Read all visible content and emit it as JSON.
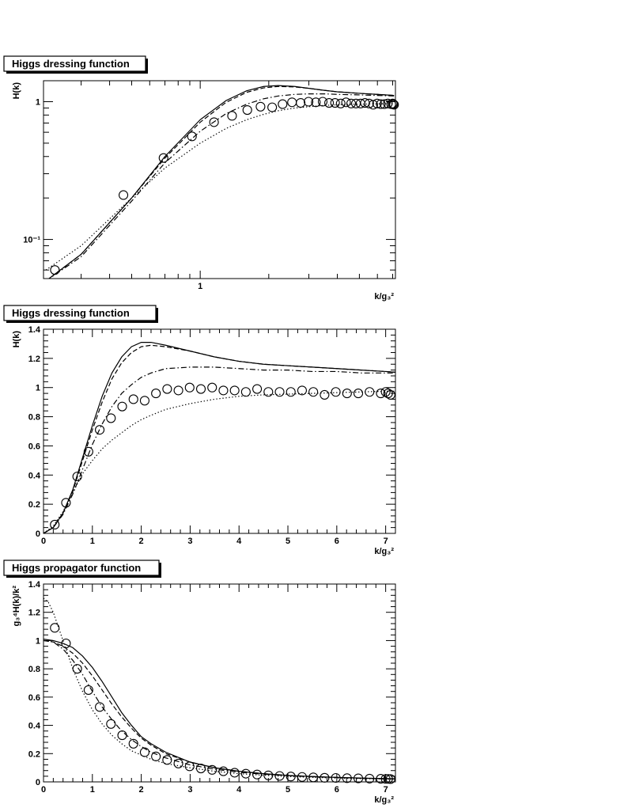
{
  "chart_data": [
    {
      "type": "line",
      "title": "Higgs dressing function",
      "ylabel": "H(k)",
      "xlabel": "k/g₃²",
      "x_scale": "log",
      "y_scale": "log",
      "xlim": [
        0.205,
        7.2
      ],
      "ylim": [
        0.052,
        1.42
      ],
      "x_ticks": [
        {
          "value": 1,
          "label": "1"
        }
      ],
      "y_ticks": [
        {
          "value": 0.1,
          "label": "10⁻¹"
        },
        {
          "value": 1,
          "label": "1"
        }
      ],
      "series": [
        {
          "style": "solid",
          "x": [
            0.21,
            0.3,
            0.5,
            0.7,
            1.0,
            1.3,
            1.6,
            1.9,
            2.2,
            2.6,
            3,
            3.5,
            4,
            5,
            6,
            7.1
          ],
          "y": [
            0.05,
            0.078,
            0.2,
            0.4,
            0.74,
            1.02,
            1.2,
            1.29,
            1.31,
            1.29,
            1.25,
            1.21,
            1.18,
            1.15,
            1.13,
            1.11
          ]
        },
        {
          "style": "dashed",
          "x": [
            0.21,
            0.3,
            0.5,
            0.7,
            1.0,
            1.3,
            1.6,
            1.9,
            2.2,
            2.6,
            3,
            3.5,
            4,
            5,
            6,
            7.1
          ],
          "y": [
            0.05,
            0.078,
            0.2,
            0.39,
            0.71,
            0.99,
            1.17,
            1.26,
            1.29,
            1.28,
            1.25,
            1.21,
            1.18,
            1.15,
            1.13,
            1.11
          ]
        },
        {
          "style": "dashdot",
          "x": [
            0.21,
            0.3,
            0.5,
            0.7,
            1.0,
            1.3,
            1.6,
            1.9,
            2.2,
            2.6,
            3,
            3.5,
            4,
            5,
            6,
            7.1
          ],
          "y": [
            0.05,
            0.075,
            0.19,
            0.36,
            0.61,
            0.82,
            0.96,
            1.05,
            1.1,
            1.13,
            1.14,
            1.14,
            1.13,
            1.12,
            1.11,
            1.1
          ]
        },
        {
          "style": "dotted",
          "x": [
            0.21,
            0.3,
            0.5,
            0.7,
            1.0,
            1.3,
            1.6,
            1.9,
            2.2,
            2.6,
            3,
            3.5,
            4,
            5,
            6,
            7.1
          ],
          "y": [
            0.06,
            0.09,
            0.2,
            0.33,
            0.5,
            0.64,
            0.74,
            0.81,
            0.86,
            0.9,
            0.92,
            0.94,
            0.95,
            0.96,
            0.965,
            0.97
          ]
        },
        {
          "style": "markers",
          "x": [
            0.23,
            0.46,
            0.69,
            0.92,
            1.15,
            1.38,
            1.61,
            1.84,
            2.07,
            2.3,
            2.53,
            2.76,
            2.99,
            3.22,
            3.45,
            3.68,
            3.91,
            4.14,
            4.37,
            4.6,
            4.83,
            5.06,
            5.29,
            5.52,
            5.75,
            5.98,
            6.21,
            6.44,
            6.67,
            6.9,
            7.0,
            7.05,
            7.1
          ],
          "y": [
            0.06,
            0.21,
            0.39,
            0.56,
            0.71,
            0.79,
            0.87,
            0.92,
            0.91,
            0.96,
            0.99,
            0.98,
            1.0,
            0.99,
            1.0,
            0.98,
            0.98,
            0.97,
            0.99,
            0.97,
            0.97,
            0.97,
            0.98,
            0.97,
            0.95,
            0.97,
            0.96,
            0.96,
            0.97,
            0.96,
            0.97,
            0.96,
            0.95
          ]
        }
      ]
    },
    {
      "type": "line",
      "title": "Higgs dressing function",
      "ylabel": "H(k)",
      "xlabel": "k/g₃²",
      "xlim": [
        0,
        7.2
      ],
      "ylim": [
        0,
        1.4
      ],
      "x_ticks": [
        {
          "value": 0,
          "label": "0"
        },
        {
          "value": 1,
          "label": "1"
        },
        {
          "value": 2,
          "label": "2"
        },
        {
          "value": 3,
          "label": "3"
        },
        {
          "value": 4,
          "label": "4"
        },
        {
          "value": 5,
          "label": "5"
        },
        {
          "value": 6,
          "label": "6"
        },
        {
          "value": 7,
          "label": "7"
        }
      ],
      "y_ticks": [
        {
          "value": 0,
          "label": "0"
        },
        {
          "value": 0.2,
          "label": "0.2"
        },
        {
          "value": 0.4,
          "label": "0.4"
        },
        {
          "value": 0.6,
          "label": "0.6"
        },
        {
          "value": 0.8,
          "label": "0.8"
        },
        {
          "value": 1,
          "label": "1"
        },
        {
          "value": 1.2,
          "label": "1.2"
        },
        {
          "value": 1.4,
          "label": "1.4"
        }
      ],
      "series": [
        {
          "style": "solid",
          "x": [
            0,
            0.2,
            0.4,
            0.6,
            0.8,
            1.0,
            1.2,
            1.4,
            1.6,
            1.8,
            2.0,
            2.2,
            2.5,
            3,
            3.5,
            4,
            4.5,
            5,
            5.5,
            6,
            6.5,
            7,
            7.2
          ],
          "y": [
            0,
            0.04,
            0.14,
            0.3,
            0.52,
            0.74,
            0.94,
            1.1,
            1.21,
            1.28,
            1.31,
            1.31,
            1.29,
            1.25,
            1.21,
            1.18,
            1.16,
            1.15,
            1.14,
            1.13,
            1.12,
            1.11,
            1.105
          ]
        },
        {
          "style": "dashed",
          "x": [
            0,
            0.2,
            0.4,
            0.6,
            0.8,
            1.0,
            1.2,
            1.4,
            1.6,
            1.8,
            2.0,
            2.2,
            2.5,
            3,
            3.5,
            4,
            4.5,
            5,
            5.5,
            6,
            6.5,
            7,
            7.2
          ],
          "y": [
            0,
            0.04,
            0.14,
            0.29,
            0.5,
            0.71,
            0.9,
            1.06,
            1.17,
            1.24,
            1.28,
            1.29,
            1.28,
            1.25,
            1.21,
            1.18,
            1.16,
            1.15,
            1.14,
            1.13,
            1.12,
            1.11,
            1.105
          ]
        },
        {
          "style": "dashdot",
          "x": [
            0,
            0.2,
            0.4,
            0.6,
            0.8,
            1.0,
            1.2,
            1.4,
            1.6,
            1.8,
            2.0,
            2.2,
            2.5,
            3,
            3.5,
            4,
            4.5,
            5,
            5.5,
            6,
            6.5,
            7,
            7.2
          ],
          "y": [
            0,
            0.04,
            0.13,
            0.27,
            0.44,
            0.61,
            0.75,
            0.87,
            0.96,
            1.02,
            1.07,
            1.1,
            1.13,
            1.14,
            1.14,
            1.13,
            1.12,
            1.12,
            1.11,
            1.11,
            1.1,
            1.1,
            1.1
          ]
        },
        {
          "style": "dotted",
          "x": [
            0,
            0.2,
            0.4,
            0.6,
            0.8,
            1.0,
            1.2,
            1.4,
            1.6,
            1.8,
            2.0,
            2.2,
            2.5,
            3,
            3.5,
            4,
            4.5,
            5,
            5.5,
            6,
            6.5,
            7,
            7.2
          ],
          "y": [
            0,
            0.05,
            0.15,
            0.28,
            0.41,
            0.5,
            0.58,
            0.64,
            0.69,
            0.74,
            0.78,
            0.81,
            0.85,
            0.89,
            0.92,
            0.94,
            0.95,
            0.955,
            0.96,
            0.965,
            0.97,
            0.975,
            0.975
          ]
        },
        {
          "style": "markers",
          "x": [
            0.23,
            0.46,
            0.69,
            0.92,
            1.15,
            1.38,
            1.61,
            1.84,
            2.07,
            2.3,
            2.53,
            2.76,
            2.99,
            3.22,
            3.45,
            3.68,
            3.91,
            4.14,
            4.37,
            4.6,
            4.83,
            5.06,
            5.29,
            5.52,
            5.75,
            5.98,
            6.21,
            6.44,
            6.67,
            6.9,
            7.0,
            7.05,
            7.1
          ],
          "y": [
            0.06,
            0.21,
            0.39,
            0.56,
            0.71,
            0.79,
            0.87,
            0.92,
            0.91,
            0.96,
            0.99,
            0.98,
            1.0,
            0.99,
            1.0,
            0.98,
            0.98,
            0.97,
            0.99,
            0.97,
            0.97,
            0.97,
            0.98,
            0.97,
            0.95,
            0.97,
            0.96,
            0.96,
            0.97,
            0.96,
            0.97,
            0.96,
            0.95
          ]
        }
      ]
    },
    {
      "type": "line",
      "title": "Higgs propagator function",
      "ylabel": "g₃⁴H(k)/k²",
      "xlabel": "k/g₃²",
      "xlim": [
        0,
        7.2
      ],
      "ylim": [
        0,
        1.4
      ],
      "x_ticks": [
        {
          "value": 0,
          "label": "0"
        },
        {
          "value": 1,
          "label": "1"
        },
        {
          "value": 2,
          "label": "2"
        },
        {
          "value": 3,
          "label": "3"
        },
        {
          "value": 4,
          "label": "4"
        },
        {
          "value": 5,
          "label": "5"
        },
        {
          "value": 6,
          "label": "6"
        },
        {
          "value": 7,
          "label": "7"
        }
      ],
      "y_ticks": [
        {
          "value": 0,
          "label": "0"
        },
        {
          "value": 0.2,
          "label": "0.2"
        },
        {
          "value": 0.4,
          "label": "0.4"
        },
        {
          "value": 0.6,
          "label": "0.6"
        },
        {
          "value": 0.8,
          "label": "0.8"
        },
        {
          "value": 1,
          "label": "1"
        },
        {
          "value": 1.2,
          "label": "1.2"
        },
        {
          "value": 1.4,
          "label": "1.4"
        }
      ],
      "series": [
        {
          "style": "solid",
          "x": [
            0,
            0.2,
            0.4,
            0.6,
            0.8,
            1.0,
            1.2,
            1.4,
            1.6,
            1.8,
            2.0,
            2.2,
            2.5,
            3,
            3.5,
            4,
            4.5,
            5,
            5.5,
            6,
            6.5,
            7,
            7.2
          ],
          "y": [
            1.01,
            1.0,
            0.98,
            0.95,
            0.89,
            0.81,
            0.71,
            0.6,
            0.49,
            0.4,
            0.32,
            0.27,
            0.21,
            0.14,
            0.1,
            0.075,
            0.058,
            0.046,
            0.038,
            0.032,
            0.027,
            0.023,
            0.022
          ]
        },
        {
          "style": "dashed",
          "x": [
            0,
            0.2,
            0.4,
            0.6,
            0.8,
            1.0,
            1.2,
            1.4,
            1.6,
            1.8,
            2.0,
            2.2,
            2.5,
            3,
            3.5,
            4,
            4.5,
            5,
            5.5,
            6,
            6.5,
            7,
            7.2
          ],
          "y": [
            1.0,
            0.99,
            0.96,
            0.91,
            0.84,
            0.75,
            0.65,
            0.55,
            0.46,
            0.38,
            0.31,
            0.26,
            0.2,
            0.14,
            0.1,
            0.075,
            0.058,
            0.046,
            0.038,
            0.032,
            0.027,
            0.023,
            0.022
          ]
        },
        {
          "style": "dashdot",
          "x": [
            0,
            0.2,
            0.4,
            0.6,
            0.8,
            1.0,
            1.2,
            1.4,
            1.6,
            1.8,
            2.0,
            2.2,
            2.5,
            3,
            3.5,
            4,
            4.5,
            5,
            5.5,
            6,
            6.5,
            7,
            7.2
          ],
          "y": [
            1.0,
            0.99,
            0.94,
            0.86,
            0.76,
            0.64,
            0.53,
            0.44,
            0.36,
            0.3,
            0.25,
            0.21,
            0.17,
            0.12,
            0.09,
            0.068,
            0.054,
            0.044,
            0.036,
            0.031,
            0.026,
            0.022,
            0.021
          ]
        },
        {
          "style": "dotted",
          "x": [
            0,
            0.1,
            0.2,
            0.4,
            0.6,
            0.8,
            1.0,
            1.2,
            1.4,
            1.6,
            1.8,
            2.0,
            2.2,
            2.5,
            3,
            3.5,
            4,
            4.5,
            5,
            5.5,
            6,
            6.5,
            7,
            7.2
          ],
          "y": [
            1.3,
            1.27,
            1.2,
            1.0,
            0.8,
            0.64,
            0.51,
            0.41,
            0.33,
            0.27,
            0.22,
            0.19,
            0.16,
            0.13,
            0.1,
            0.075,
            0.058,
            0.047,
            0.038,
            0.032,
            0.027,
            0.023,
            0.02,
            0.019
          ]
        },
        {
          "style": "markers",
          "x": [
            0.23,
            0.46,
            0.69,
            0.92,
            1.15,
            1.38,
            1.61,
            1.84,
            2.07,
            2.3,
            2.53,
            2.76,
            2.99,
            3.22,
            3.45,
            3.68,
            3.91,
            4.14,
            4.37,
            4.6,
            4.83,
            5.06,
            5.29,
            5.52,
            5.75,
            5.98,
            6.21,
            6.44,
            6.67,
            6.9,
            7.0,
            7.05,
            7.1
          ],
          "y": [
            1.09,
            0.98,
            0.8,
            0.65,
            0.53,
            0.41,
            0.33,
            0.27,
            0.21,
            0.18,
            0.155,
            0.13,
            0.11,
            0.095,
            0.085,
            0.075,
            0.065,
            0.058,
            0.052,
            0.046,
            0.042,
            0.038,
            0.035,
            0.032,
            0.029,
            0.028,
            0.026,
            0.025,
            0.023,
            0.022,
            0.021,
            0.021,
            0.02
          ]
        }
      ]
    }
  ]
}
